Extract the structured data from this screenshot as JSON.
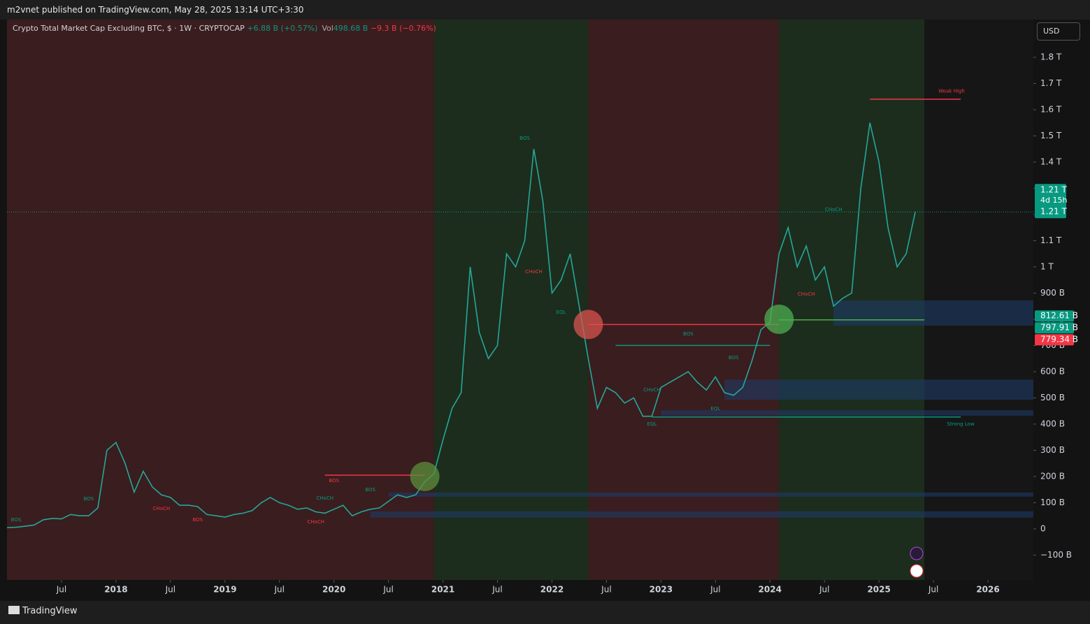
{
  "header": {
    "publisher": "m2vnet published on TradingView.com, May 28, 2025 13:14 UTC+3:30"
  },
  "footer": {
    "brand": "TradingView"
  },
  "chart_data": {
    "type": "line",
    "title": "Crypto Total Market Cap Excluding BTC, $ · 1W · CRYPTOCAP",
    "change": "+6.88 B (+0.57%)",
    "volume_label": "Vol",
    "volume": "498.68 B",
    "volume_change": "−9.3 B (−0.76%)",
    "currency": "USD",
    "color": "#26a69a",
    "x": [
      "2017-01",
      "2017-02",
      "2017-03",
      "2017-04",
      "2017-05",
      "2017-06",
      "2017-07",
      "2017-08",
      "2017-09",
      "2017-10",
      "2017-11",
      "2017-12",
      "2018-01",
      "2018-02",
      "2018-03",
      "2018-04",
      "2018-05",
      "2018-06",
      "2018-07",
      "2018-08",
      "2018-09",
      "2018-10",
      "2018-11",
      "2018-12",
      "2019-01",
      "2019-02",
      "2019-03",
      "2019-04",
      "2019-05",
      "2019-06",
      "2019-07",
      "2019-08",
      "2019-09",
      "2019-10",
      "2019-11",
      "2019-12",
      "2020-01",
      "2020-02",
      "2020-03",
      "2020-04",
      "2020-05",
      "2020-06",
      "2020-07",
      "2020-08",
      "2020-09",
      "2020-10",
      "2020-11",
      "2020-12",
      "2021-01",
      "2021-02",
      "2021-03",
      "2021-04",
      "2021-05",
      "2021-06",
      "2021-07",
      "2021-08",
      "2021-09",
      "2021-10",
      "2021-11",
      "2021-12",
      "2022-01",
      "2022-02",
      "2022-03",
      "2022-04",
      "2022-05",
      "2022-06",
      "2022-07",
      "2022-08",
      "2022-09",
      "2022-10",
      "2022-11",
      "2022-12",
      "2023-01",
      "2023-02",
      "2023-03",
      "2023-04",
      "2023-05",
      "2023-06",
      "2023-07",
      "2023-08",
      "2023-09",
      "2023-10",
      "2023-11",
      "2023-12",
      "2024-01",
      "2024-02",
      "2024-03",
      "2024-04",
      "2024-05",
      "2024-06",
      "2024-07",
      "2024-08",
      "2024-09",
      "2024-10",
      "2024-11",
      "2024-12",
      "2025-01",
      "2025-02",
      "2025-03",
      "2025-04",
      "2025-05"
    ],
    "values": [
      5,
      6,
      10,
      15,
      35,
      40,
      38,
      55,
      50,
      50,
      80,
      300,
      330,
      250,
      140,
      220,
      160,
      130,
      120,
      90,
      90,
      85,
      55,
      50,
      45,
      55,
      60,
      70,
      100,
      120,
      100,
      90,
      75,
      80,
      65,
      60,
      75,
      90,
      50,
      65,
      75,
      80,
      105,
      130,
      120,
      130,
      180,
      210,
      340,
      460,
      520,
      1000,
      750,
      650,
      700,
      1050,
      1000,
      1100,
      1450,
      1250,
      900,
      950,
      1050,
      850,
      650,
      460,
      540,
      520,
      480,
      500,
      430,
      430,
      540,
      560,
      580,
      600,
      560,
      530,
      580,
      520,
      510,
      540,
      640,
      760,
      790,
      1050,
      1150,
      1000,
      1080,
      950,
      1000,
      850,
      880,
      900,
      1300,
      1550,
      1400,
      1150,
      1000,
      1050,
      1210
    ],
    "xlim": [
      "2017-01",
      "2026-06"
    ],
    "xticks": [
      {
        "value": "2017-07",
        "label": "Jul"
      },
      {
        "value": "2018-01",
        "label": "2018"
      },
      {
        "value": "2018-07",
        "label": "Jul"
      },
      {
        "value": "2019-01",
        "label": "2019"
      },
      {
        "value": "2019-07",
        "label": "Jul"
      },
      {
        "value": "2020-01",
        "label": "2020"
      },
      {
        "value": "2020-07",
        "label": "Jul"
      },
      {
        "value": "2021-01",
        "label": "2021"
      },
      {
        "value": "2021-07",
        "label": "Jul"
      },
      {
        "value": "2022-01",
        "label": "2022"
      },
      {
        "value": "2022-07",
        "label": "Jul"
      },
      {
        "value": "2023-01",
        "label": "2023"
      },
      {
        "value": "2023-07",
        "label": "Jul"
      },
      {
        "value": "2024-01",
        "label": "2024"
      },
      {
        "value": "2024-07",
        "label": "Jul"
      },
      {
        "value": "2025-01",
        "label": "2025"
      },
      {
        "value": "2025-07",
        "label": "Jul"
      },
      {
        "value": "2026-01",
        "label": "2026"
      }
    ],
    "ylim": [
      -195,
      1944
    ],
    "yticks": [
      {
        "value": -100,
        "label": "−100 B"
      },
      0,
      {
        "value": 100,
        "label": "100 B"
      },
      {
        "value": 200,
        "label": "200 B"
      },
      {
        "value": 300,
        "label": "300 B"
      },
      {
        "value": 400,
        "label": "400 B"
      },
      {
        "value": 500,
        "label": "500 B"
      },
      {
        "value": 600,
        "label": "600 B"
      },
      {
        "value": 700,
        "label": "700 B"
      },
      {
        "value": 800,
        "label": "800 B"
      },
      {
        "value": 900,
        "label": "900 B"
      },
      {
        "value": 1000,
        "label": "1 T"
      },
      {
        "value": 1100,
        "label": "1.1 T"
      },
      {
        "value": 1200,
        "label": "1.2 T"
      },
      {
        "value": 1300,
        "label": "1.3 T"
      },
      {
        "value": 1400,
        "label": "1.4 T"
      },
      {
        "value": 1500,
        "label": "1.5 T"
      },
      {
        "value": 1600,
        "label": "1.6 T"
      },
      {
        "value": 1700,
        "label": "1.7 T"
      },
      {
        "value": 1800,
        "label": "1.8 T"
      }
    ],
    "backgrounds": [
      {
        "start": "2017-01",
        "end": "2020-12",
        "color": "#3a1d1e"
      },
      {
        "start": "2020-12",
        "end": "2022-05",
        "color": "#1c2d1d"
      },
      {
        "start": "2022-05",
        "end": "2024-02",
        "color": "#3a1d1e"
      },
      {
        "start": "2024-02",
        "end": "2025-06",
        "color": "#1c2d1d"
      },
      {
        "start": "2025-06",
        "end": "2026-06",
        "color": "#161616"
      }
    ],
    "boxes": [
      {
        "start": "2024-08",
        "top": 872,
        "bottom": 776,
        "color": "#1e3a66"
      },
      {
        "start": "2023-08",
        "top": 570,
        "bottom": 493,
        "color": "#1e3a66"
      },
      {
        "start": "2023-01",
        "top": 453,
        "bottom": 432,
        "color": "#1e3a66"
      },
      {
        "start": "2020-07",
        "top": 139,
        "bottom": 123,
        "color": "#1e3a66"
      },
      {
        "start": "2020-05",
        "top": 67,
        "bottom": 43,
        "color": "#1e3a66"
      }
    ],
    "levels": [
      {
        "start": "2024-12",
        "end": "2025-10",
        "value": 1640,
        "color": "#f23645"
      },
      {
        "start": "2022-12",
        "end": "2025-10",
        "value": 427,
        "color": "#089981"
      },
      {
        "start": "2019-12",
        "end": "2020-11",
        "value": 205,
        "color": "#f23645"
      },
      {
        "start": "2022-08",
        "end": "2024-01",
        "value": 700,
        "color": "#089981"
      },
      {
        "start": "2022-05",
        "end": "2024-02",
        "value": 780,
        "color": "#f23645"
      },
      {
        "start": "2024-02",
        "end": "2025-06",
        "value": 797.91,
        "color": "#4caf50"
      }
    ],
    "markers": [
      {
        "x": "2020-11",
        "value": 200,
        "color": "#5b8f3c"
      },
      {
        "x": "2022-05",
        "value": 780,
        "color": "#d9534f"
      },
      {
        "x": "2024-02",
        "value": 800,
        "color": "#4caf50"
      }
    ],
    "annotations": [
      {
        "x": "2025-09",
        "value": 1670,
        "text": "Weak High",
        "color": "#f23645"
      },
      {
        "x": "2025-10",
        "value": 400,
        "text": "Strong Low",
        "color": "#089981"
      },
      {
        "x": "2020-01",
        "value": 184,
        "text": "BOS",
        "color": "#f23645"
      },
      {
        "x": "2021-10",
        "value": 1490,
        "text": "BOS",
        "color": "#089981"
      },
      {
        "x": "2021-11",
        "value": 981,
        "text": "CHoCH",
        "color": "#f23645"
      },
      {
        "x": "2022-02",
        "value": 827,
        "text": "EQL",
        "color": "#089981"
      },
      {
        "x": "2023-04",
        "value": 744,
        "text": "BOS",
        "color": "#089981"
      },
      {
        "x": "2023-09",
        "value": 653,
        "text": "BOS",
        "color": "#089981"
      },
      {
        "x": "2024-08",
        "value": 1219,
        "text": "CHoCH",
        "color": "#089981"
      },
      {
        "x": "2024-05",
        "value": 896,
        "text": "CHoCH",
        "color": "#f23645"
      },
      {
        "x": "2023-07",
        "value": 459,
        "text": "EQL",
        "color": "#089981"
      },
      {
        "x": "2022-12",
        "value": 400,
        "text": "EQL",
        "color": "#089981"
      },
      {
        "x": "2022-12",
        "value": 531,
        "text": "CHoCH",
        "color": "#089981"
      },
      {
        "x": "2018-06",
        "value": 77,
        "text": "CHoCH",
        "color": "#f23645"
      },
      {
        "x": "2017-10",
        "value": 115,
        "text": "BOS",
        "color": "#089981"
      },
      {
        "x": "2017-02",
        "value": 35,
        "text": "BOS",
        "color": "#089981"
      },
      {
        "x": "2019-12",
        "value": 117,
        "text": "CHoCH",
        "color": "#089981"
      },
      {
        "x": "2019-11",
        "value": 27,
        "text": "CHoCH",
        "color": "#f23645"
      },
      {
        "x": "2018-10",
        "value": 35,
        "text": "BOS",
        "color": "#f23645"
      },
      {
        "x": "2020-05",
        "value": 149,
        "text": "BOS",
        "color": "#089981"
      }
    ],
    "price_labels": [
      {
        "value": 1210,
        "label": "1.21 T",
        "countdown": "4d 15h",
        "close": "1.21 T",
        "color": "#089981"
      },
      {
        "value": 812.61,
        "label": "812.61 B",
        "color": "#089981"
      },
      {
        "value": 797.91,
        "label": "797.91 B",
        "color": "#089981"
      },
      {
        "value": 779.34,
        "label": "779.34 B",
        "color": "#f23645"
      }
    ]
  }
}
